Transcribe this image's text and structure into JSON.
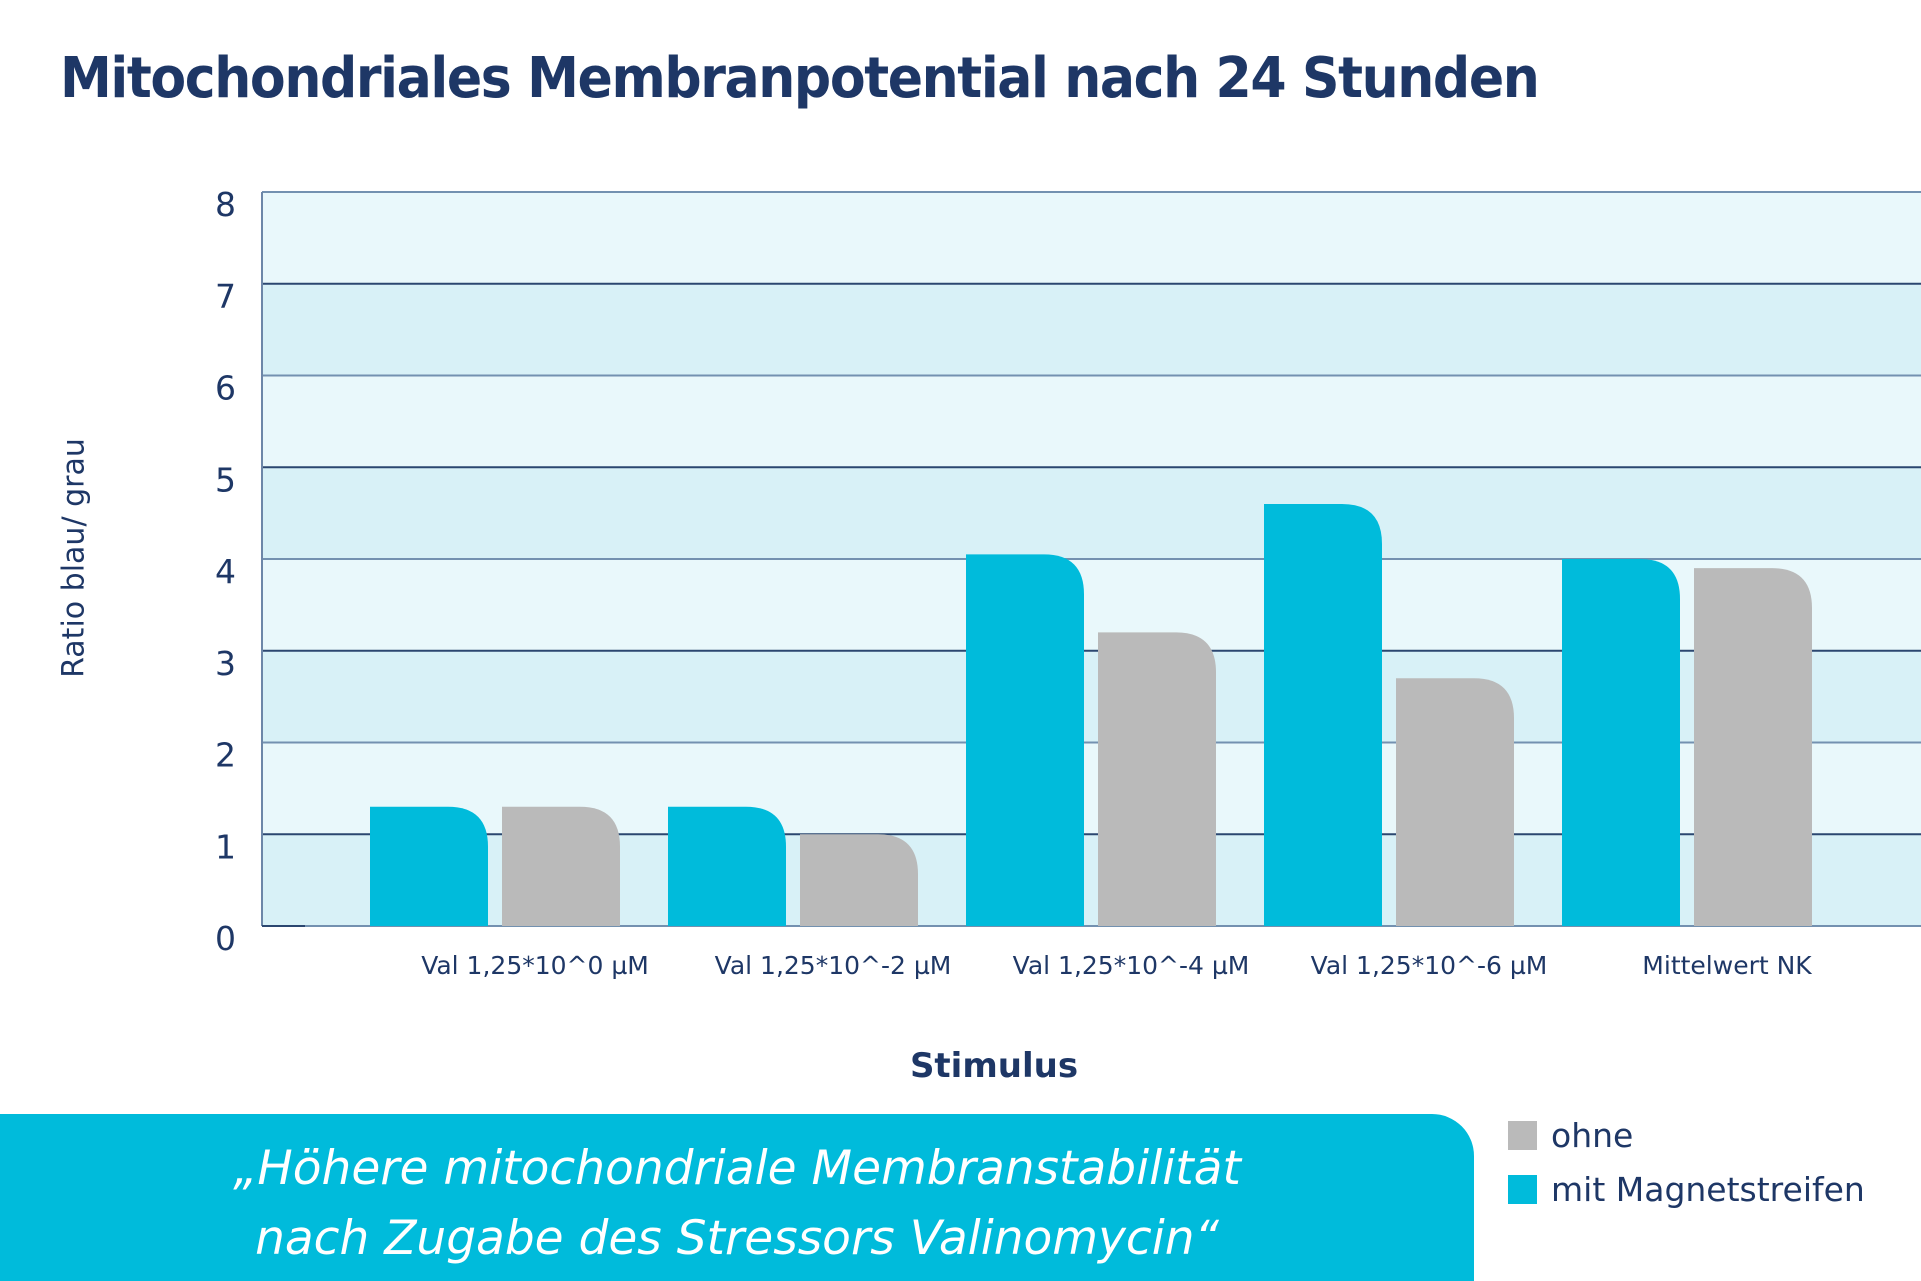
{
  "title": "Mitochondriales Membranpotential nach 24 Stunden",
  "chart_data": {
    "type": "bar",
    "title": "Mitochondriales Membranpotential nach 24 Stunden",
    "xlabel": "Stimulus",
    "ylabel": "Ratio blau/ grau",
    "ylim": [
      0,
      8
    ],
    "yticks": [
      "0",
      "1",
      "2",
      "3",
      "4",
      "5",
      "6",
      "7",
      "8"
    ],
    "grid": true,
    "categories": [
      "Val 1,25*10^0 µM",
      "Val 1,25*10^-2 µM",
      "Val 1,25*10^-4 µM",
      "Val 1,25*10^-6 µM",
      "Mittelwert NK"
    ],
    "series": [
      {
        "name": "mit Magnetstreifen",
        "color": "#00bbdb",
        "values": [
          1.3,
          1.3,
          4.05,
          4.6,
          4.0
        ]
      },
      {
        "name": "ohne",
        "color": "#bababa",
        "values": [
          1.3,
          1.0,
          3.2,
          2.7,
          3.9
        ]
      }
    ],
    "legend_position": "bottom-right"
  },
  "legend": [
    {
      "label": "ohne",
      "color": "#bababa"
    },
    {
      "label": "mit Magnetstreifen",
      "color": "#00bbdb"
    }
  ],
  "banner": {
    "line1": "„Höhere mitochondriale Membranstabilität",
    "line2": "nach Zugabe des Stressors Valinomycin“",
    "color": "#00bbdb"
  },
  "colors": {
    "text": "#1e3766",
    "band_light": "#e9f8fb",
    "band_dark": "#d8f1f7",
    "gridline": "#2b4770"
  }
}
